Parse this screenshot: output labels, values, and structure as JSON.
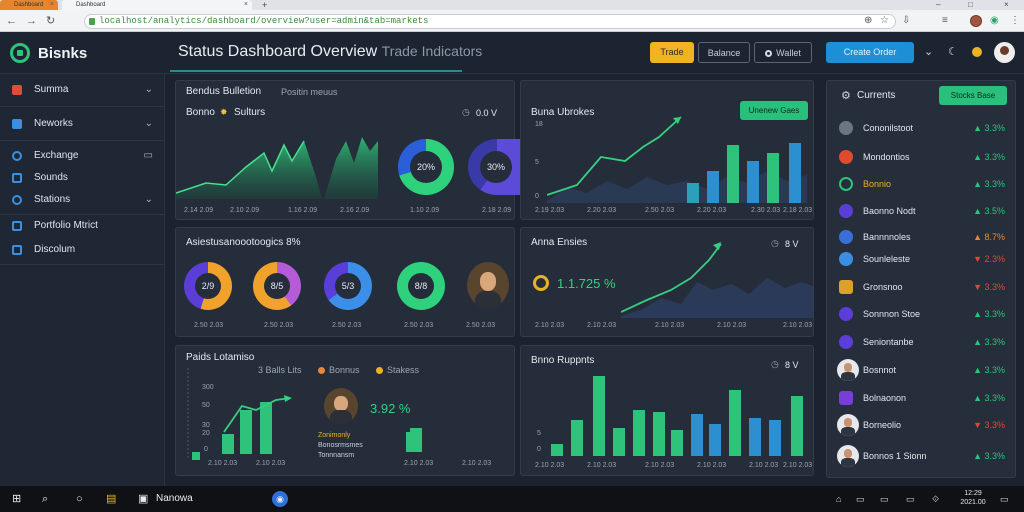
{
  "browser": {
    "tab1_label": "Dashboard",
    "tab2_label": "Dashboard",
    "new_tab_symbol": "+",
    "url": "localhost/analytics/dashboard/overview?user=admin&tab=markets",
    "window_controls": [
      "–",
      "□",
      "×"
    ]
  },
  "app": {
    "logo_text": "Bisnks",
    "page_title": "Status Dashboard Overview",
    "page_subtitle": "Trade Indicators",
    "header_buttons": {
      "yellow": "Trade",
      "outline": "Balance",
      "wallet": "Wallet",
      "blue": "Create Order"
    }
  },
  "sidebar": {
    "items": [
      {
        "label": "Summa",
        "icon": "bars-icon",
        "color": "#e24b3b",
        "chevron": "⌄"
      },
      {
        "label": "Neworks",
        "icon": "grid-icon",
        "color": "#3c8fe0",
        "chevron": "⌄"
      },
      {
        "label": "Exchange",
        "icon": "chart-icon",
        "color": "#3c8fe0",
        "chevron": "▭"
      },
      {
        "label": "Sounds",
        "icon": "circle-icon",
        "color": "#3c8fe0",
        "chevron": ""
      },
      {
        "label": "Stations",
        "icon": "swap-icon",
        "color": "#3c8fe0",
        "chevron": "⌄"
      },
      {
        "label": "Portfolio Mtrict",
        "icon": "folder-icon",
        "color": "#3c8fe0",
        "chevron": ""
      },
      {
        "label": "Discolum",
        "icon": "list-icon",
        "color": "#3c8fe0",
        "chevron": ""
      }
    ]
  },
  "panel_market": {
    "title": "Bendus Bulletion",
    "meta": "Positin meuus",
    "subtitle": "Bonno",
    "subtitle2": "Sulturs",
    "right_meta": "0.0 V",
    "donut1_label": "20%",
    "donut2_label": "30%",
    "x_labels": [
      "2.14 2.09",
      "2.10 2.09",
      "1.16 2.09",
      "2.16 2.09",
      "1.10 2.09",
      "2.18 2.09"
    ]
  },
  "panel_trend": {
    "title": "Buna Ubrokes",
    "button": "Unenew Gaes",
    "y_labels": [
      "18",
      "5",
      "0"
    ],
    "x_labels": [
      "2.19 2.03",
      "2.20 2.03",
      "2.50 2.03",
      "2.20 2.03",
      "2.30 2.03",
      "2.18 2.03"
    ]
  },
  "panel_donuts": {
    "title": "Asiestusanoootoogics 8%",
    "labels": [
      "2/9",
      "8/5",
      "5/3",
      "8/8"
    ],
    "x_labels": [
      "2.50 2.03",
      "2.50 2.03",
      "2.50 2.03",
      "2.50 2.03",
      "2.50 2.03"
    ]
  },
  "panel_area": {
    "title": "Anna Ensies",
    "right_meta": "8 V",
    "value": "1.1.725 %",
    "x_labels": [
      "2.10 2.03",
      "2.10 2.03",
      "2.10 2.03",
      "2.10 2.03",
      "2.10 2.03"
    ]
  },
  "panel_bottom": {
    "title": "Paids Lotamiso",
    "meta": "3 Balls Lits",
    "legend1": "Bonnus",
    "legend2": "Stakess",
    "y_labels": [
      "300",
      "50",
      "30",
      "20",
      "0"
    ],
    "value": "3.92 %",
    "person_lines": [
      "Zonimonly",
      "Bonosrmsmes",
      "Tonnnansm"
    ],
    "x_labels": [
      "2.10 2.03",
      "2.10 2.03",
      "2.10 2.03",
      "2.10 2.03"
    ]
  },
  "panel_bars": {
    "title": "Bnno Ruppnts",
    "right_meta": "8 V",
    "y_labels": [
      "5",
      "0"
    ],
    "x_labels": [
      "2.10 2.03",
      "2.10 2.03",
      "2.10 2.03",
      "2.10 2.03",
      "2.10 2.03",
      "2.10 2.03"
    ]
  },
  "right_list": {
    "title": "Currents",
    "button": "Stocks Base",
    "items": [
      {
        "name": "Cononilstoot",
        "value": "3.3%",
        "color": "#2fc27a",
        "icon_color": "#6b7685"
      },
      {
        "name": "Mondontios",
        "value": "3.3%",
        "color": "#2fc27a",
        "icon_color": "#e04a2e"
      },
      {
        "name": "Bonnio",
        "value": "3.3%",
        "color": "#2fc27a",
        "icon_color": "#2fc27a"
      },
      {
        "name": "Baonno Nodt",
        "value": "3.5%",
        "color": "#2fc27a",
        "icon_color": "#5b3ed8"
      },
      {
        "name": "Bannnnoles",
        "value": "8.7%",
        "color": "#e8873a",
        "icon_color": "#3b6fd8"
      },
      {
        "name": "Sounleleste",
        "value": "2.3%",
        "color": "#e0473a",
        "icon_color": "#3b8fe0"
      },
      {
        "name": "Gronsnoo",
        "value": "3.3%",
        "color": "#e0473a",
        "icon_color": "#d9a22b"
      },
      {
        "name": "Sonnnon Stoe",
        "value": "3.3%",
        "color": "#2fc27a",
        "icon_color": "#5b3ed8"
      },
      {
        "name": "Seniontanbe",
        "value": "3.3%",
        "color": "#2fc27a",
        "icon_color": "#5b3ed8"
      },
      {
        "name": "Bosnnot",
        "value": "3.3%",
        "color": "#2fc27a",
        "icon_color": "#ffffff"
      },
      {
        "name": "Bolnaonon",
        "value": "3.3%",
        "color": "#2fc27a",
        "icon_color": "#7a3ed8"
      },
      {
        "name": "Borneolio",
        "value": "3.3%",
        "color": "#e0473a",
        "icon_color": "#ffffff"
      },
      {
        "name": "Bonnos 1 Sionn",
        "value": "3.3%",
        "color": "#2fc27a",
        "icon_color": "#ffffff"
      }
    ]
  },
  "taskbar": {
    "app_label": "Nanowa",
    "tray": [
      "⌂",
      "▭",
      "▭",
      "▭",
      "⟐"
    ],
    "clock_time": "12:29",
    "clock_date": "2021.00"
  },
  "colors": {
    "accent_green": "#28c07a",
    "accent_yellow": "#f1b321",
    "accent_blue": "#1c8fd6",
    "panel_bg": "#252d3b"
  }
}
